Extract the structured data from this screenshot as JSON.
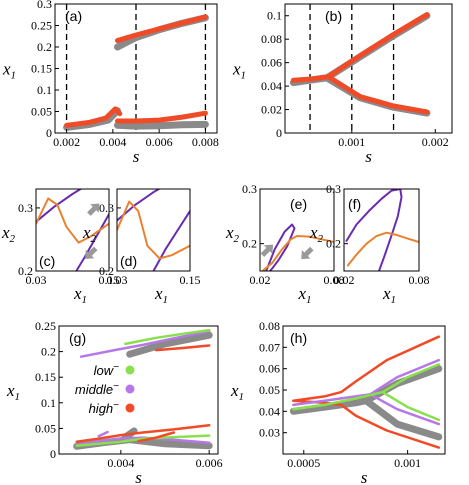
{
  "colors": {
    "gray": "#8a8a8a",
    "red": "#f14a27",
    "purple": "#6a2bb0",
    "orange": "#e9822f",
    "green": "#88e04c",
    "violet": "#b678e6",
    "arrow": "#9a9a9a"
  },
  "chart_data": [
    {
      "id": "a",
      "type": "line",
      "panel_label": "(a)",
      "xlabel": "s",
      "ylabel": "x",
      "ylabel_sub": "1",
      "xlim": [
        0.0015,
        0.0085
      ],
      "ylim": [
        0,
        0.3
      ],
      "xticks": [
        0.002,
        0.004,
        0.006,
        0.008
      ],
      "xticklabels": [
        "0.002",
        "0.004",
        "0.006",
        "0.008"
      ],
      "yticks": [
        0,
        0.05,
        0.1,
        0.15,
        0.2,
        0.25,
        0.3
      ],
      "yticklabels": [
        "0",
        "0.05",
        "0.1",
        "0.15",
        "0.2",
        "0.25",
        "0.3"
      ],
      "vlines": [
        0.002,
        0.005,
        0.008
      ],
      "series": [
        {
          "color": "gray",
          "width": 7,
          "x": [
            0.0042,
            0.005,
            0.006,
            0.007,
            0.008
          ],
          "y": [
            0.2,
            0.222,
            0.24,
            0.255,
            0.268
          ]
        },
        {
          "color": "red",
          "width": 5,
          "x": [
            0.0042,
            0.005,
            0.006,
            0.007,
            0.008
          ],
          "y": [
            0.215,
            0.228,
            0.242,
            0.256,
            0.27
          ]
        },
        {
          "color": "gray",
          "width": 7,
          "x": [
            0.002,
            0.003,
            0.0038,
            0.0042
          ],
          "y": [
            0.013,
            0.02,
            0.03,
            0.052
          ]
        },
        {
          "color": "red",
          "width": 5,
          "x": [
            0.002,
            0.003,
            0.0037,
            0.0041,
            0.0043
          ],
          "y": [
            0.018,
            0.025,
            0.035,
            0.056,
            0.045
          ]
        },
        {
          "color": "gray",
          "width": 7,
          "x": [
            0.0042,
            0.005,
            0.006,
            0.007,
            0.008
          ],
          "y": [
            0.018,
            0.016,
            0.017,
            0.019,
            0.02
          ]
        },
        {
          "color": "red",
          "width": 5,
          "x": [
            0.0042,
            0.005,
            0.006,
            0.007,
            0.008
          ],
          "y": [
            0.028,
            0.028,
            0.03,
            0.037,
            0.046
          ]
        }
      ]
    },
    {
      "id": "b",
      "type": "line",
      "panel_label": "(b)",
      "xlabel": "s",
      "ylabel": "x",
      "ylabel_sub": "1",
      "xlim": [
        0.0002,
        0.0022
      ],
      "ylim": [
        0,
        0.11
      ],
      "xticks": [
        0.001,
        0.002
      ],
      "xticklabels": [
        "0.001",
        "0.002"
      ],
      "yticks": [
        0,
        0.02,
        0.04,
        0.06,
        0.08,
        0.1
      ],
      "yticklabels": [
        "0",
        "0.02",
        "0.04",
        "0.06",
        "0.08",
        "0.1"
      ],
      "vlines": [
        0.0005,
        0.001,
        0.0015
      ],
      "series": [
        {
          "color": "gray",
          "width": 7,
          "x": [
            0.0003,
            0.0005,
            0.0007
          ],
          "y": [
            0.043,
            0.045,
            0.047
          ]
        },
        {
          "color": "gray",
          "width": 7,
          "x": [
            0.0007,
            0.0011,
            0.0015,
            0.0019
          ],
          "y": [
            0.047,
            0.065,
            0.083,
            0.1
          ]
        },
        {
          "color": "gray",
          "width": 7,
          "x": [
            0.0007,
            0.0011,
            0.0015,
            0.0019
          ],
          "y": [
            0.047,
            0.03,
            0.022,
            0.017
          ]
        },
        {
          "color": "red",
          "width": 5,
          "x": [
            0.0003,
            0.0005,
            0.00072
          ],
          "y": [
            0.045,
            0.046,
            0.048
          ]
        },
        {
          "color": "red",
          "width": 5,
          "x": [
            0.00072,
            0.0011,
            0.0015,
            0.0019
          ],
          "y": [
            0.048,
            0.066,
            0.084,
            0.101
          ]
        },
        {
          "color": "red",
          "width": 5,
          "x": [
            0.00072,
            0.0011,
            0.0015,
            0.0019
          ],
          "y": [
            0.048,
            0.031,
            0.023,
            0.018
          ]
        }
      ]
    },
    {
      "id": "c",
      "type": "line",
      "panel_label": "(c)",
      "xlabel": "x",
      "xlabel_sub": "1",
      "ylabel": "x",
      "ylabel_sub": "2",
      "xlim": [
        0.03,
        0.15
      ],
      "ylim": [
        0.2,
        0.33
      ],
      "xticks": [
        0.03,
        0.15
      ],
      "xticklabels": [
        "0.03",
        "0.15"
      ],
      "yticks": [
        0.2,
        0.3
      ],
      "yticklabels": [
        "0.2",
        "0.3"
      ],
      "series": [
        {
          "color": "purple",
          "width": 2,
          "x": [
            0.03,
            0.06,
            0.09,
            0.12
          ],
          "y": [
            0.278,
            0.302,
            0.322,
            0.34
          ]
        },
        {
          "color": "purple",
          "width": 2,
          "x": [
            0.09,
            0.11,
            0.13,
            0.15
          ],
          "y": [
            0.19,
            0.222,
            0.256,
            0.29
          ]
        },
        {
          "color": "orange",
          "width": 2,
          "x": [
            0.03,
            0.05,
            0.065,
            0.08,
            0.1,
            0.12,
            0.15
          ],
          "y": [
            0.275,
            0.315,
            0.305,
            0.27,
            0.245,
            0.255,
            0.275
          ]
        }
      ],
      "arrows": [
        {
          "x": 0.125,
          "y": 0.298,
          "dir": "up-right"
        },
        {
          "x": 0.12,
          "y": 0.228,
          "dir": "down-left"
        }
      ]
    },
    {
      "id": "d",
      "type": "line",
      "panel_label": "(d)",
      "xlabel": "x",
      "xlabel_sub": "1",
      "ylabel": "x",
      "ylabel_sub": "2",
      "xlim": [
        0.03,
        0.15
      ],
      "ylim": [
        0.2,
        0.33
      ],
      "xticks": [
        0.03,
        0.15
      ],
      "xticklabels": [
        "0.03",
        "0.15"
      ],
      "yticks": [
        0.2,
        0.3
      ],
      "yticklabels": [
        "0.2",
        "0.3"
      ],
      "series": [
        {
          "color": "purple",
          "width": 2,
          "x": [
            0.03,
            0.06,
            0.09,
            0.12
          ],
          "y": [
            0.28,
            0.305,
            0.325,
            0.342
          ]
        },
        {
          "color": "purple",
          "width": 2,
          "x": [
            0.09,
            0.11,
            0.13,
            0.15
          ],
          "y": [
            0.2,
            0.235,
            0.265,
            0.295
          ]
        },
        {
          "color": "orange",
          "width": 2,
          "x": [
            0.03,
            0.05,
            0.065,
            0.08,
            0.1,
            0.12,
            0.15
          ],
          "y": [
            0.265,
            0.31,
            0.295,
            0.24,
            0.22,
            0.225,
            0.24
          ]
        }
      ]
    },
    {
      "id": "e",
      "type": "line",
      "panel_label": "(e)",
      "xlabel": "x",
      "xlabel_sub": "1",
      "ylabel": "x",
      "ylabel_sub": "2",
      "xlim": [
        0.02,
        0.08
      ],
      "ylim": [
        0.15,
        0.3
      ],
      "xticks": [
        0.02,
        0.08
      ],
      "xticklabels": [
        "0.02",
        "0.08"
      ],
      "yticks": [
        0.2,
        0.3
      ],
      "yticklabels": [
        "0.2",
        "0.3"
      ],
      "series": [
        {
          "color": "purple",
          "width": 2,
          "x": [
            0.025,
            0.032,
            0.04,
            0.046,
            0.048,
            0.042,
            0.035,
            0.03,
            0.028
          ],
          "y": [
            0.15,
            0.19,
            0.222,
            0.235,
            0.228,
            0.195,
            0.17,
            0.155,
            0.15
          ]
        },
        {
          "color": "orange",
          "width": 2,
          "x": [
            0.022,
            0.03,
            0.038,
            0.045,
            0.05,
            0.06,
            0.07,
            0.08
          ],
          "y": [
            0.15,
            0.165,
            0.19,
            0.208,
            0.214,
            0.213,
            0.208,
            0.203
          ]
        }
      ],
      "arrows": [
        {
          "x": 0.026,
          "y": 0.188,
          "dir": "up-right"
        },
        {
          "x": 0.058,
          "y": 0.182,
          "dir": "down-left"
        }
      ]
    },
    {
      "id": "f",
      "type": "line",
      "panel_label": "(f)",
      "xlabel": "x",
      "xlabel_sub": "1",
      "ylabel": "x",
      "ylabel_sub": "2",
      "xlim": [
        0.02,
        0.08
      ],
      "ylim": [
        0.15,
        0.3
      ],
      "xticks": [
        0.02,
        0.08
      ],
      "xticklabels": [
        "0.02",
        "0.08"
      ],
      "yticks": [
        0.2,
        0.3
      ],
      "yticklabels": [
        "0.2",
        "0.3"
      ],
      "series": [
        {
          "color": "purple",
          "width": 2,
          "x": [
            0.022,
            0.03,
            0.04,
            0.05,
            0.058,
            0.065,
            0.066,
            0.063,
            0.058,
            0.052,
            0.048
          ],
          "y": [
            0.205,
            0.235,
            0.26,
            0.282,
            0.297,
            0.3,
            0.285,
            0.25,
            0.215,
            0.175,
            0.15
          ]
        },
        {
          "color": "orange",
          "width": 2,
          "x": [
            0.023,
            0.03,
            0.038,
            0.046,
            0.054,
            0.062,
            0.07,
            0.08
          ],
          "y": [
            0.16,
            0.18,
            0.2,
            0.214,
            0.22,
            0.216,
            0.21,
            0.203
          ]
        }
      ]
    },
    {
      "id": "g",
      "type": "line",
      "panel_label": "(g)",
      "xlabel": "s",
      "ylabel": "x",
      "ylabel_sub": "1",
      "xlim": [
        0.0026,
        0.0062
      ],
      "ylim": [
        0,
        0.25
      ],
      "xticks": [
        0.004,
        0.006
      ],
      "xticklabels": [
        "0.004",
        "0.006"
      ],
      "yticks": [
        0,
        0.05,
        0.1,
        0.15,
        0.2,
        0.25
      ],
      "yticklabels": [
        "0",
        "0.05",
        "0.1",
        "0.15",
        "0.2",
        "0.25"
      ],
      "legend": [
        {
          "label": "low",
          "sup": "−",
          "color": "green"
        },
        {
          "label": "middle",
          "sup": "−",
          "color": "violet"
        },
        {
          "label": "high",
          "sup": "−",
          "color": "red"
        }
      ],
      "series": [
        {
          "color": "gray",
          "width": 7,
          "x": [
            0.0042,
            0.005,
            0.006
          ],
          "y": [
            0.195,
            0.215,
            0.232
          ]
        },
        {
          "color": "violet",
          "width": 2.5,
          "x": [
            0.0031,
            0.0038,
            0.0045,
            0.0052,
            0.006
          ],
          "y": [
            0.19,
            0.202,
            0.213,
            0.226,
            0.24
          ]
        },
        {
          "color": "green",
          "width": 2.5,
          "x": [
            0.0041,
            0.0048,
            0.0055,
            0.006
          ],
          "y": [
            0.215,
            0.227,
            0.236,
            0.242
          ]
        },
        {
          "color": "red",
          "width": 2.5,
          "x": [
            0.0048,
            0.0054,
            0.006
          ],
          "y": [
            0.203,
            0.207,
            0.212
          ]
        },
        {
          "color": "gray",
          "width": 7,
          "x": [
            0.003,
            0.0036,
            0.0042,
            0.005,
            0.006
          ],
          "y": [
            0.015,
            0.022,
            0.028,
            0.02,
            0.016
          ]
        },
        {
          "color": "gray",
          "width": 7,
          "x": [
            0.0041,
            0.0043
          ],
          "y": [
            0.033,
            0.045
          ]
        },
        {
          "color": "violet",
          "width": 2.5,
          "x": [
            0.003,
            0.0035,
            0.004,
            0.0045,
            0.0052,
            0.006
          ],
          "y": [
            0.018,
            0.025,
            0.03,
            0.032,
            0.028,
            0.022
          ]
        },
        {
          "color": "green",
          "width": 2.5,
          "x": [
            0.003,
            0.0035,
            0.004,
            0.0045,
            0.0052,
            0.006
          ],
          "y": [
            0.016,
            0.02,
            0.024,
            0.03,
            0.033,
            0.036
          ]
        },
        {
          "color": "red",
          "width": 2.5,
          "x": [
            0.003,
            0.0035,
            0.004,
            0.0045,
            0.0052,
            0.006
          ],
          "y": [
            0.024,
            0.03,
            0.037,
            0.042,
            0.048,
            0.056
          ]
        },
        {
          "color": "red",
          "width": 2.5,
          "x": [
            0.0044,
            0.0048,
            0.0052
          ],
          "y": [
            0.025,
            0.032,
            0.042
          ]
        },
        {
          "color": "violet",
          "width": 2.5,
          "x": [
            0.0035,
            0.0037
          ],
          "y": [
            0.035,
            0.043
          ]
        }
      ]
    },
    {
      "id": "h",
      "type": "line",
      "panel_label": "(h)",
      "xlabel": "s",
      "ylabel": "x",
      "ylabel_sub": "1",
      "xlim": [
        0.0004,
        0.00118
      ],
      "ylim": [
        0.02,
        0.08
      ],
      "xticks": [
        0.0005,
        0.001
      ],
      "xticklabels": [
        "0.0005",
        "0.001"
      ],
      "yticks": [
        0.03,
        0.04,
        0.05,
        0.06,
        0.07,
        0.08
      ],
      "yticklabels": [
        "0.03",
        "0.04",
        "0.05",
        "0.06",
        "0.07",
        "0.08"
      ],
      "series": [
        {
          "color": "gray",
          "width": 7,
          "x": [
            0.00045,
            0.0006,
            0.00075,
            0.0008
          ],
          "y": [
            0.04,
            0.042,
            0.044,
            0.045
          ]
        },
        {
          "color": "gray",
          "width": 7,
          "x": [
            0.0008,
            0.00095,
            0.00115
          ],
          "y": [
            0.045,
            0.053,
            0.06
          ]
        },
        {
          "color": "gray",
          "width": 7,
          "x": [
            0.0008,
            0.00095,
            0.00115
          ],
          "y": [
            0.045,
            0.034,
            0.028
          ]
        },
        {
          "color": "red",
          "width": 2.5,
          "x": [
            0.00045,
            0.0006,
            0.00068,
            0.00075,
            0.0009,
            0.00115
          ],
          "y": [
            0.045,
            0.047,
            0.049,
            0.054,
            0.064,
            0.075
          ]
        },
        {
          "color": "red",
          "width": 2.5,
          "x": [
            0.00045,
            0.0006,
            0.00068,
            0.00075,
            0.0009,
            0.00115
          ],
          "y": [
            0.045,
            0.044,
            0.043,
            0.038,
            0.031,
            0.023
          ]
        },
        {
          "color": "violet",
          "width": 2.5,
          "x": [
            0.00045,
            0.0006,
            0.00075,
            0.00082
          ],
          "y": [
            0.043,
            0.045,
            0.047,
            0.048
          ]
        },
        {
          "color": "violet",
          "width": 2.5,
          "x": [
            0.00082,
            0.00095,
            0.00115
          ],
          "y": [
            0.048,
            0.056,
            0.064
          ]
        },
        {
          "color": "violet",
          "width": 2.5,
          "x": [
            0.00082,
            0.00095,
            0.00115
          ],
          "y": [
            0.048,
            0.041,
            0.034
          ]
        },
        {
          "color": "green",
          "width": 2.5,
          "x": [
            0.00045,
            0.0006,
            0.00075,
            0.00088
          ],
          "y": [
            0.041,
            0.043,
            0.046,
            0.049
          ]
        },
        {
          "color": "green",
          "width": 2.5,
          "x": [
            0.00088,
            0.001,
            0.00115
          ],
          "y": [
            0.049,
            0.056,
            0.062
          ]
        },
        {
          "color": "green",
          "width": 2.5,
          "x": [
            0.00088,
            0.001,
            0.00115
          ],
          "y": [
            0.049,
            0.042,
            0.036
          ]
        }
      ]
    }
  ]
}
